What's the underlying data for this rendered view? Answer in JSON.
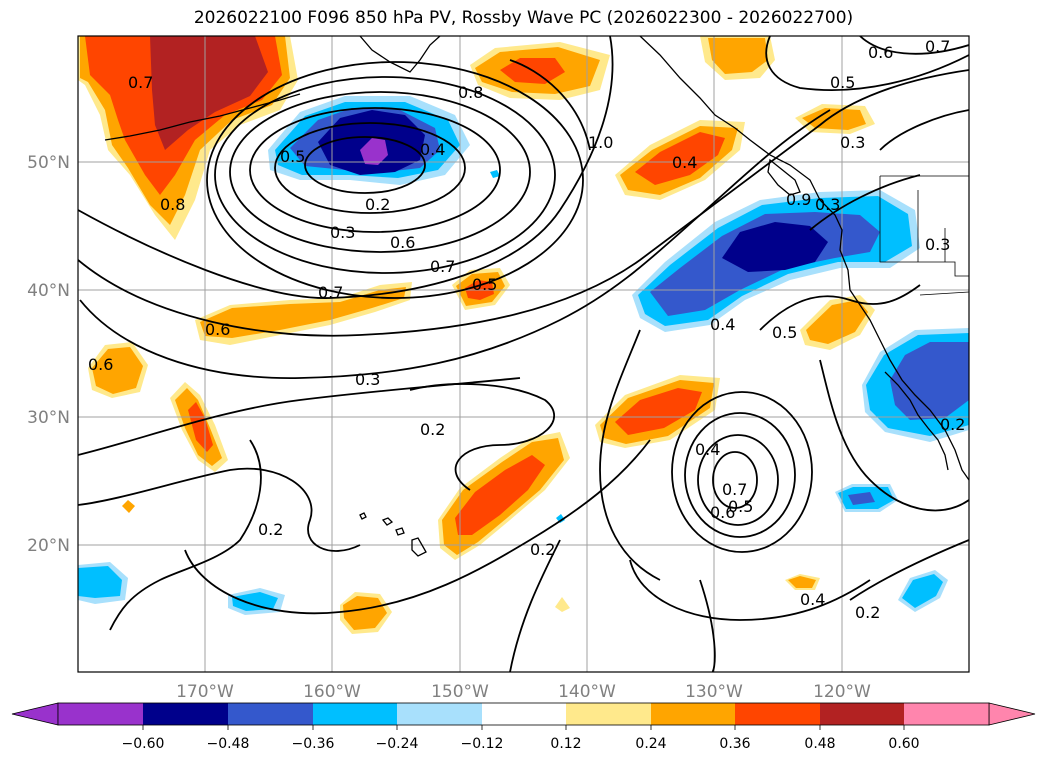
{
  "title": "2026022100 F096 850 hPa PV, Rossby Wave PC (2026022300 - 2026022700)",
  "axes": {
    "lat_labels": [
      "50°N",
      "40°N",
      "30°N",
      "20°N"
    ],
    "lon_labels": [
      "170°W",
      "160°W",
      "150°W",
      "140°W",
      "130°W",
      "120°W"
    ]
  },
  "colorbar": {
    "ticks": [
      "−0.60",
      "−0.48",
      "−0.36",
      "−0.24",
      "−0.12",
      "0.12",
      "0.24",
      "0.36",
      "0.48",
      "0.60"
    ],
    "colors": [
      "#9932cc",
      "#00008b",
      "#3458cc",
      "#00bfff",
      "#a8e0fc",
      "#ffffff",
      "#ffe98c",
      "#ffa500",
      "#ff4500",
      "#b22222",
      "#ff85ad"
    ]
  },
  "contour_labels": [
    "0.7",
    "0.8",
    "0.5",
    "0.4",
    "0.2",
    "0.3",
    "0.6",
    "0.7",
    "0.7",
    "0.6",
    "0.8",
    "1.0",
    "0.5",
    "0.6",
    "0.7",
    "0.5",
    "0.3",
    "0.4",
    "0.3",
    "0.3",
    "0.4",
    "0.5",
    "0.9",
    "0.3",
    "0.2",
    "0.4",
    "0.7",
    "0.6",
    "0.5",
    "0.2",
    "0.2",
    "0.4",
    "0.2",
    "0.2",
    "0.6"
  ]
}
